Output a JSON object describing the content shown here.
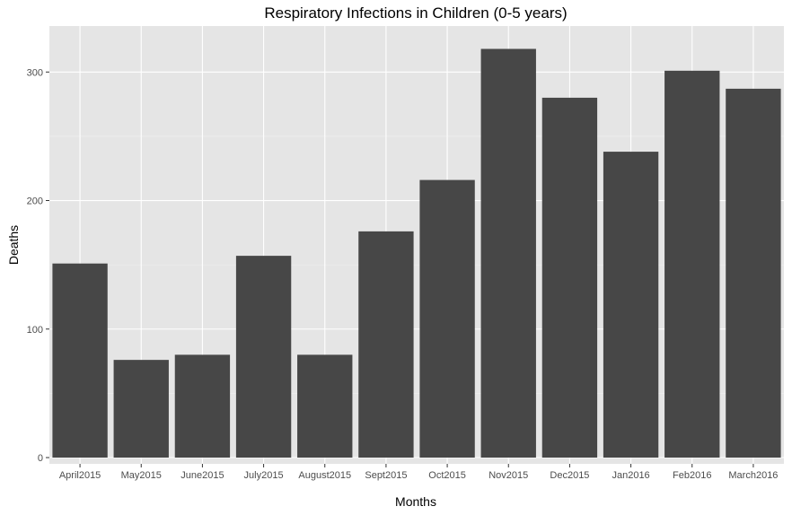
{
  "chart_data": {
    "type": "bar",
    "title": "Respiratory Infections in Children (0-5 years)",
    "xlabel": "Months",
    "ylabel": "Deaths",
    "categories": [
      "April2015",
      "May2015",
      "June2015",
      "July2015",
      "August2015",
      "Sept2015",
      "Oct2015",
      "Nov2015",
      "Dec2015",
      "Jan2016",
      "Feb2016",
      "March2016"
    ],
    "values": [
      151,
      76,
      80,
      157,
      80,
      176,
      216,
      318,
      280,
      238,
      301,
      287
    ],
    "ylim": [
      0,
      333
    ],
    "yticks": [
      "0",
      "100",
      "200",
      "300"
    ],
    "grid": true,
    "legend": "none",
    "colors": {
      "bar": "#474747",
      "panel": "#e5e5e5",
      "grid_major": "#ffffff",
      "grid_minor": "#f2f2f2",
      "tick": "#333333"
    }
  }
}
